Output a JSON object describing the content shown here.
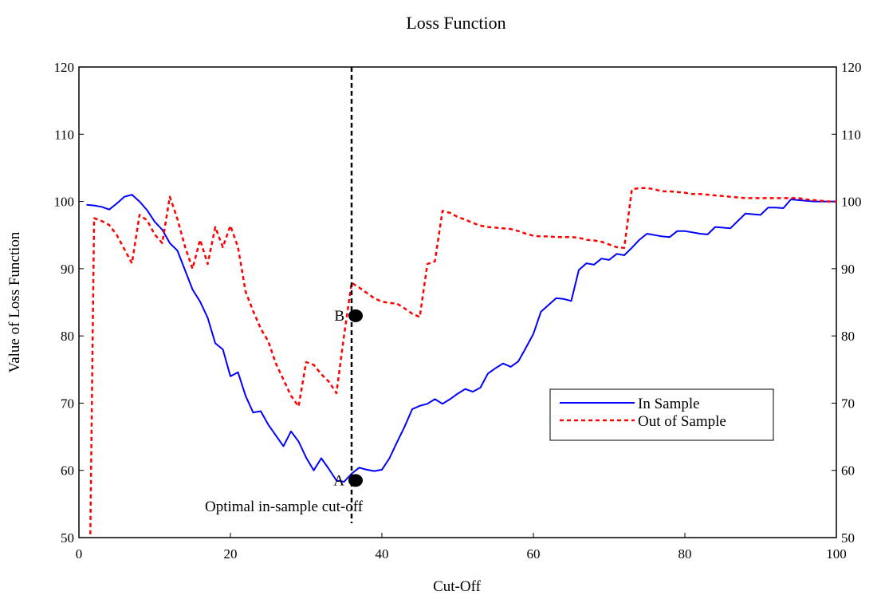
{
  "chart_data": {
    "type": "line",
    "title": "Loss Function",
    "xlabel": "Cut-Off",
    "ylabel": "Value of Loss Function",
    "xlim": [
      0,
      100
    ],
    "ylim": [
      50,
      120
    ],
    "x_ticks": [
      0,
      20,
      40,
      60,
      80,
      100
    ],
    "y_ticks": [
      50,
      60,
      70,
      80,
      90,
      100,
      110,
      120
    ],
    "secondary_y_axis": true,
    "grid": false,
    "legend_position": "right",
    "series": [
      {
        "name": "In Sample",
        "color": "#0000ff",
        "style": "solid",
        "x": [
          1,
          2,
          3,
          4,
          5,
          6,
          7,
          8,
          9,
          10,
          11,
          12,
          13,
          14,
          15,
          16,
          17,
          18,
          19,
          20,
          21,
          22,
          23,
          24,
          25,
          26,
          27,
          28,
          29,
          30,
          31,
          32,
          33,
          34,
          35,
          36,
          37,
          38,
          39,
          40,
          41,
          42,
          43,
          44,
          45,
          46,
          47,
          48,
          49,
          50,
          51,
          52,
          53,
          54,
          55,
          56,
          57,
          58,
          59,
          60,
          61,
          62,
          63,
          64,
          65,
          66,
          67,
          68,
          69,
          70,
          71,
          72,
          73,
          74,
          75,
          76,
          77,
          78,
          79,
          80,
          81,
          82,
          83,
          84,
          85,
          86,
          87,
          88,
          89,
          90,
          91,
          92,
          93,
          94,
          95,
          96,
          97,
          98,
          99,
          100
        ],
        "y": [
          99.5,
          99.4,
          99.2,
          98.8,
          99.7,
          100.7,
          101.0,
          100.0,
          98.7,
          97.0,
          95.8,
          93.8,
          92.7,
          89.8,
          86.9,
          85.1,
          82.7,
          78.9,
          78.0,
          74.0,
          74.6,
          71.1,
          68.6,
          68.8,
          66.8,
          65.2,
          63.6,
          65.8,
          64.3,
          61.9,
          60.0,
          61.8,
          60.2,
          58.5,
          58.3,
          59.5,
          60.4,
          60.1,
          59.9,
          60.1,
          61.8,
          64.2,
          66.5,
          69.1,
          69.6,
          69.9,
          70.6,
          69.9,
          70.6,
          71.4,
          72.1,
          71.7,
          72.3,
          74.4,
          75.2,
          75.9,
          75.4,
          76.2,
          78.2,
          80.3,
          83.6,
          84.6,
          85.6,
          85.5,
          85.2,
          89.8,
          90.8,
          90.6,
          91.5,
          91.3,
          92.2,
          92.0,
          93.1,
          94.3,
          95.2,
          95.0,
          94.8,
          94.7,
          95.6,
          95.6,
          95.4,
          95.2,
          95.1,
          96.2,
          96.1,
          96.0,
          97.1,
          98.2,
          98.1,
          98.0,
          99.1,
          99.1,
          99.0,
          100.3,
          100.2,
          100.1,
          100.0,
          100.0,
          100.0,
          100.0
        ]
      },
      {
        "name": "Out of Sample",
        "color": "#ff0000",
        "style": "dashed",
        "x": [
          1.5,
          2,
          3,
          4,
          5,
          6,
          7,
          8,
          9,
          10,
          11,
          12,
          13,
          14,
          15,
          16,
          17,
          18,
          19,
          20,
          21,
          22,
          23,
          24,
          25,
          26,
          27,
          28,
          29,
          30,
          31,
          32,
          33,
          34,
          35,
          36,
          37,
          38,
          39,
          40,
          41,
          42,
          43,
          44,
          45,
          46,
          47,
          48,
          49,
          50,
          51,
          52,
          53,
          54,
          55,
          56,
          57,
          58,
          59,
          60,
          61,
          62,
          63,
          64,
          65,
          66,
          67,
          68,
          69,
          70,
          71,
          72,
          73,
          74,
          75,
          76,
          77,
          78,
          79,
          80,
          81,
          82,
          83,
          84,
          85,
          86,
          87,
          88,
          89,
          90,
          91,
          92,
          93,
          94,
          95,
          96,
          97,
          98,
          99,
          100
        ],
        "y": [
          50.5,
          97.5,
          97.1,
          96.5,
          95.0,
          92.9,
          90.8,
          98.0,
          97.2,
          95.1,
          93.8,
          100.7,
          97.4,
          93.3,
          90.0,
          94.3,
          90.7,
          96.2,
          93.2,
          96.4,
          93.2,
          86.6,
          83.7,
          81.1,
          79.2,
          75.9,
          73.5,
          71.1,
          69.5,
          76.1,
          75.7,
          74.3,
          73.2,
          71.5,
          80.0,
          87.9,
          87.2,
          86.4,
          85.6,
          85.1,
          84.9,
          84.8,
          84.1,
          83.3,
          82.8,
          90.7,
          91.1,
          98.6,
          98.3,
          97.7,
          97.3,
          96.8,
          96.4,
          96.2,
          96.1,
          96.0,
          95.9,
          95.6,
          95.2,
          94.9,
          94.8,
          94.8,
          94.7,
          94.7,
          94.7,
          94.6,
          94.3,
          94.2,
          94.0,
          93.6,
          93.2,
          93.1,
          101.8,
          102.0,
          102.0,
          101.8,
          101.5,
          101.5,
          101.4,
          101.3,
          101.1,
          101.1,
          101.0,
          100.9,
          100.8,
          100.7,
          100.6,
          100.5,
          100.5,
          100.5,
          100.5,
          100.5,
          100.5,
          100.5,
          100.5,
          100.3,
          100.2,
          100.1,
          100.0,
          100.0
        ]
      }
    ],
    "vertical_line": {
      "x": 36,
      "style": "dashed",
      "color": "#000000"
    },
    "annotations": [
      {
        "label": "A",
        "x": 36,
        "y": 58.5
      },
      {
        "label": "B",
        "x": 36,
        "y": 83.0
      }
    ],
    "cutoff_label": "Optimal in-sample cut-off"
  }
}
